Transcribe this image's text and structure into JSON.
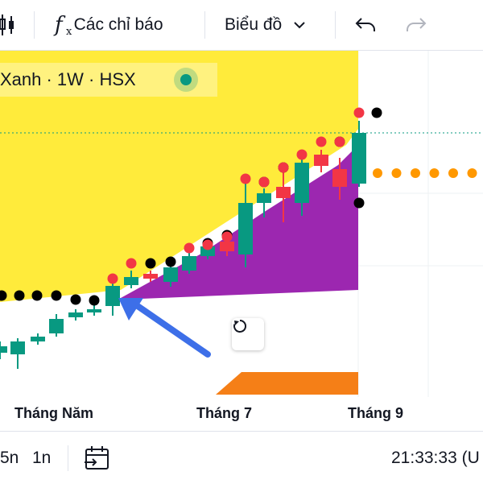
{
  "toolbar": {
    "indicators_label": "Các chỉ báo",
    "chart_type_label": "Biểu đồ",
    "icons": [
      "candles-icon",
      "fx-icon",
      "chevron-down-icon",
      "undo-icon",
      "redo-icon"
    ]
  },
  "legend": {
    "text": "Xanh · 1W · HSX",
    "status_color": "#089981"
  },
  "x_axis_labels": [
    "Tháng Năm",
    "Tháng 7",
    "Tháng 9"
  ],
  "bottom_bar": {
    "range_1": "5n",
    "range_2": "1n",
    "clock": "21:33:33 (U",
    "icons": [
      "calendar-goto-icon"
    ]
  },
  "colors": {
    "up": "#089981",
    "down": "#f23645",
    "yellow_fill": "#ffeb3b",
    "purple_fill": "#9c27b0",
    "orange_fill": "#f57f17",
    "orange_dots": "#ff9800",
    "arrow": "#3d6fe8"
  }
}
